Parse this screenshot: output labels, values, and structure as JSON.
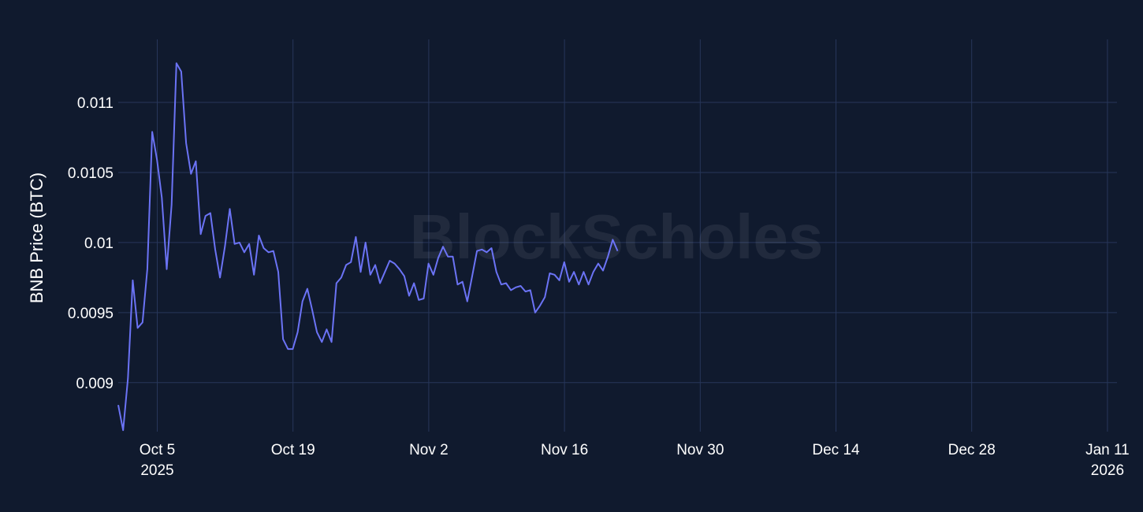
{
  "watermark": "BlockScholes",
  "chart_data": {
    "type": "line",
    "title": "",
    "xlabel": "",
    "ylabel": "BNB Price (BTC)",
    "ylim": [
      0.00865,
      0.01145
    ],
    "grid": true,
    "line_color": "#6b73f5",
    "background": "#101a2e",
    "x_start": "2025-10-01",
    "x_step_days": 0.5,
    "x_ticks": [
      {
        "day": 4,
        "label": "Oct 5",
        "sub": "2025"
      },
      {
        "day": 18,
        "label": "Oct 19",
        "sub": ""
      },
      {
        "day": 32,
        "label": "Nov 2",
        "sub": ""
      },
      {
        "day": 46,
        "label": "Nov 16",
        "sub": ""
      },
      {
        "day": 60,
        "label": "Nov 30",
        "sub": ""
      },
      {
        "day": 74,
        "label": "Dec 14",
        "sub": ""
      },
      {
        "day": 88,
        "label": "Dec 28",
        "sub": ""
      },
      {
        "day": 102,
        "label": "Jan 11",
        "sub": "2026"
      }
    ],
    "y_ticks": [
      {
        "value": 0.009,
        "label": "0.009"
      },
      {
        "value": 0.0095,
        "label": "0.0095"
      },
      {
        "value": 0.01,
        "label": "0.01"
      },
      {
        "value": 0.0105,
        "label": "0.0105"
      },
      {
        "value": 0.011,
        "label": "0.011"
      }
    ],
    "series": [
      {
        "name": "BNB Price (BTC)",
        "values": [
          0.00884,
          0.00866,
          0.00903,
          0.00973,
          0.00939,
          0.00943,
          0.00981,
          0.01079,
          0.01059,
          0.01032,
          0.00981,
          0.01027,
          0.01128,
          0.01122,
          0.01071,
          0.01049,
          0.01058,
          0.01006,
          0.01019,
          0.01021,
          0.00995,
          0.00975,
          0.00997,
          0.01024,
          0.00999,
          0.01,
          0.00993,
          0.00999,
          0.00977,
          0.01005,
          0.00996,
          0.00993,
          0.00994,
          0.00979,
          0.00931,
          0.00924,
          0.00924,
          0.00936,
          0.00958,
          0.00967,
          0.00952,
          0.00936,
          0.00929,
          0.00938,
          0.00929,
          0.00971,
          0.00975,
          0.00984,
          0.00986,
          0.01004,
          0.00979,
          0.01,
          0.00977,
          0.00984,
          0.00971,
          0.00979,
          0.00987,
          0.00985,
          0.00981,
          0.00976,
          0.00962,
          0.00971,
          0.00959,
          0.0096,
          0.00985,
          0.00977,
          0.00989,
          0.00997,
          0.0099,
          0.0099,
          0.0097,
          0.00972,
          0.00958,
          0.00976,
          0.00994,
          0.00995,
          0.00993,
          0.00996,
          0.00979,
          0.0097,
          0.00971,
          0.00966,
          0.00968,
          0.00969,
          0.00965,
          0.00966,
          0.0095,
          0.00955,
          0.00961,
          0.00978,
          0.00977,
          0.00973,
          0.00986,
          0.00972,
          0.00979,
          0.0097,
          0.00979,
          0.0097,
          0.00979,
          0.00985,
          0.0098,
          0.0099,
          0.01002,
          0.00994
        ]
      }
    ]
  }
}
